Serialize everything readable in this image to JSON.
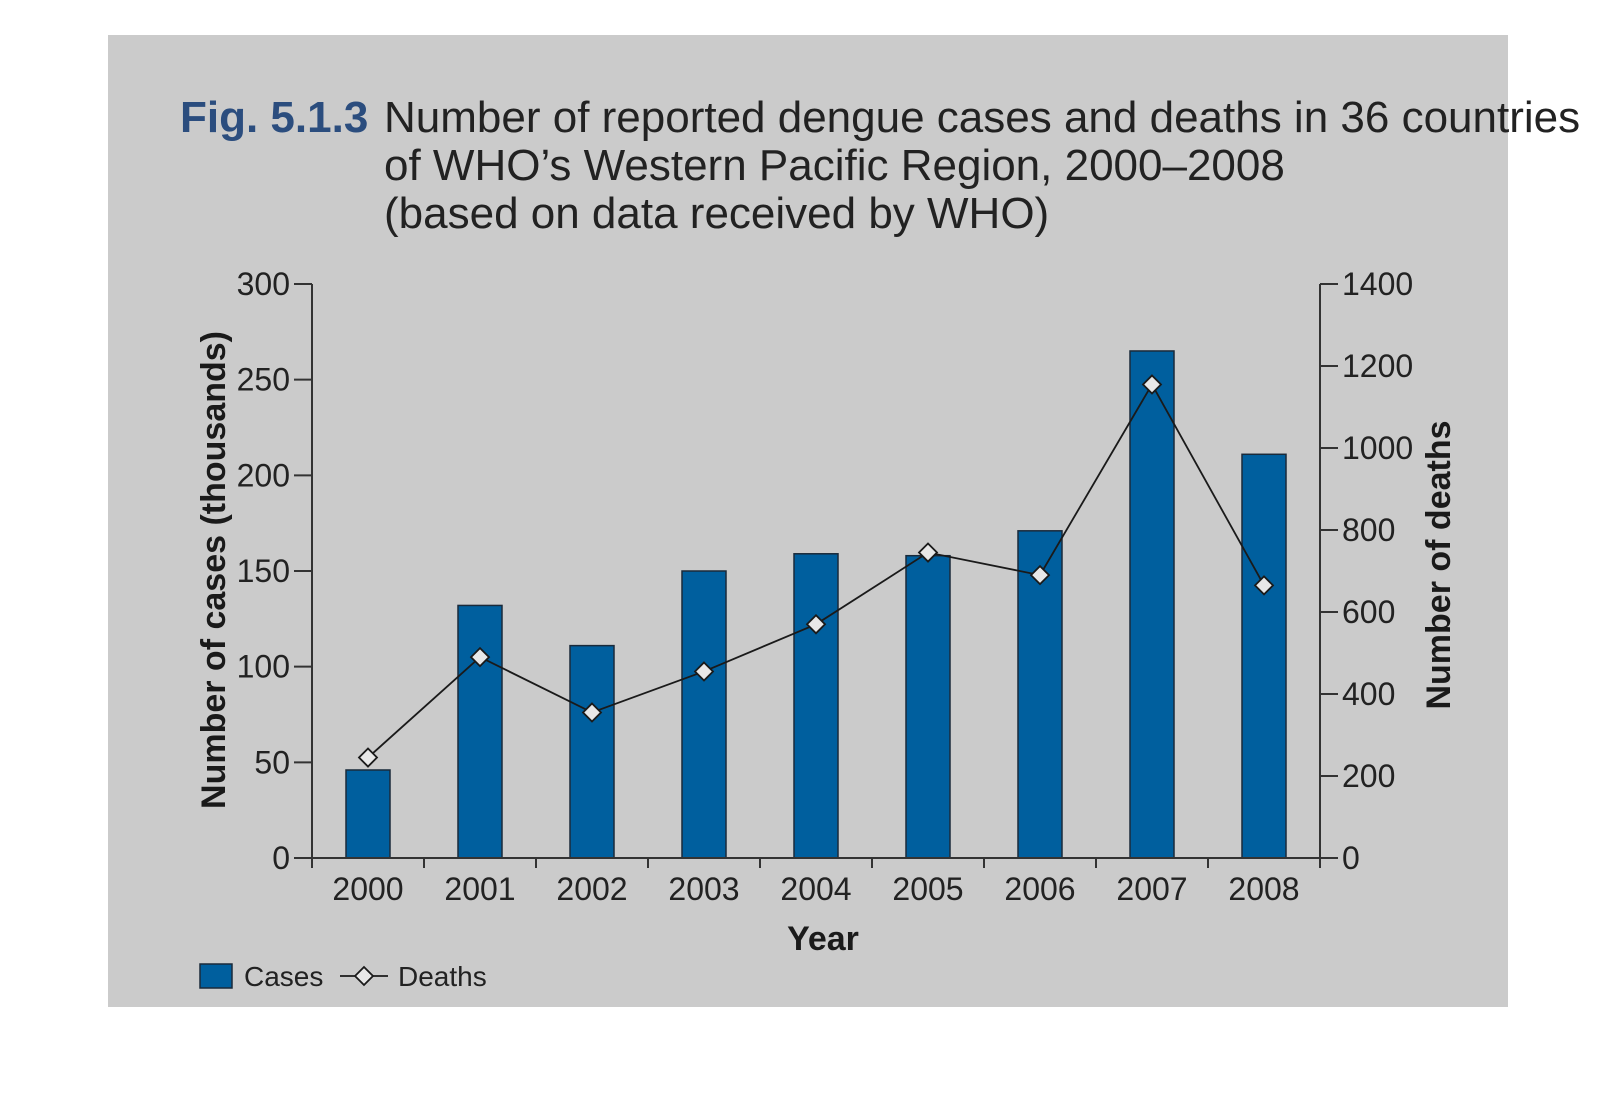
{
  "figure": {
    "label": "Fig. 5.1.3",
    "title_lines": [
      "Number of reported dengue cases and deaths in 36 countries",
      "of WHO’s Western Pacific Region, 2000–2008",
      "(based on data received by WHO)"
    ]
  },
  "colors": {
    "panel_background": "#cbcbcb",
    "bar_fill": "#005f9e",
    "bar_stroke": "#1a2a3a",
    "line": "#1a1a1a",
    "marker_fill": "#e8e8e8",
    "fig_label": "#2b4d7e"
  },
  "chart_data": {
    "type": "bar",
    "categories": [
      "2000",
      "2001",
      "2002",
      "2003",
      "2004",
      "2005",
      "2006",
      "2007",
      "2008"
    ],
    "series": [
      {
        "name": "Cases",
        "type": "bar",
        "axis": "left",
        "values": [
          46,
          132,
          111,
          150,
          159,
          158,
          171,
          265,
          211
        ]
      },
      {
        "name": "Deaths",
        "type": "line",
        "axis": "right",
        "marker": "diamond",
        "values": [
          245,
          490,
          355,
          455,
          570,
          745,
          690,
          1155,
          665
        ]
      }
    ],
    "xlabel": "Year",
    "ylabel": "Number of cases (thousands)",
    "y2label": "Number of deaths",
    "ylim": [
      0,
      300
    ],
    "yticks": [
      "0",
      "50",
      "100",
      "150",
      "200",
      "250",
      "300"
    ],
    "y2lim": [
      0,
      1400
    ],
    "y2ticks": [
      "0",
      "200",
      "400",
      "600",
      "800",
      "1000",
      "1200",
      "1400"
    ],
    "grid": false,
    "legend_position": "bottom-left",
    "legend": [
      {
        "name": "Cases",
        "symbol": "bar"
      },
      {
        "name": "Deaths",
        "symbol": "line-diamond"
      }
    ]
  }
}
